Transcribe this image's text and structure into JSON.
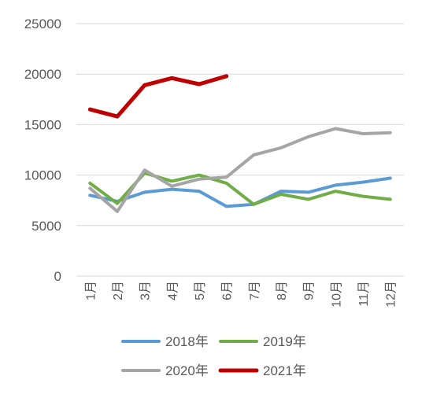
{
  "chart_data": {
    "type": "line",
    "title": "",
    "xlabel": "",
    "ylabel": "",
    "categories": [
      "1月",
      "2月",
      "3月",
      "4月",
      "5月",
      "6月",
      "7月",
      "8月",
      "9月",
      "10月",
      "11月",
      "12月"
    ],
    "ylim": [
      0,
      25000
    ],
    "yticks": [
      "0",
      "5000",
      "10000",
      "15000",
      "20000",
      "25000"
    ],
    "grid": true,
    "legend_position": "bottom",
    "series": [
      {
        "name": "2018年",
        "color": "#5B9BD5",
        "values": [
          8000,
          7400,
          8300,
          8600,
          8400,
          6900,
          7100,
          8400,
          8300,
          9000,
          9300,
          9700
        ]
      },
      {
        "name": "2019年",
        "color": "#70AD47",
        "values": [
          9200,
          7200,
          10200,
          9400,
          10000,
          9200,
          7100,
          8100,
          7600,
          8400,
          7900,
          7600
        ]
      },
      {
        "name": "2020年",
        "color": "#A5A5A5",
        "values": [
          8700,
          6400,
          10500,
          8900,
          9600,
          9800,
          12000,
          12700,
          13800,
          14600,
          14100,
          14200
        ]
      },
      {
        "name": "2021年",
        "color": "#C00000",
        "values": [
          16500,
          15800,
          18900,
          19600,
          19000,
          19800,
          null,
          null,
          null,
          null,
          null,
          null
        ]
      }
    ]
  }
}
